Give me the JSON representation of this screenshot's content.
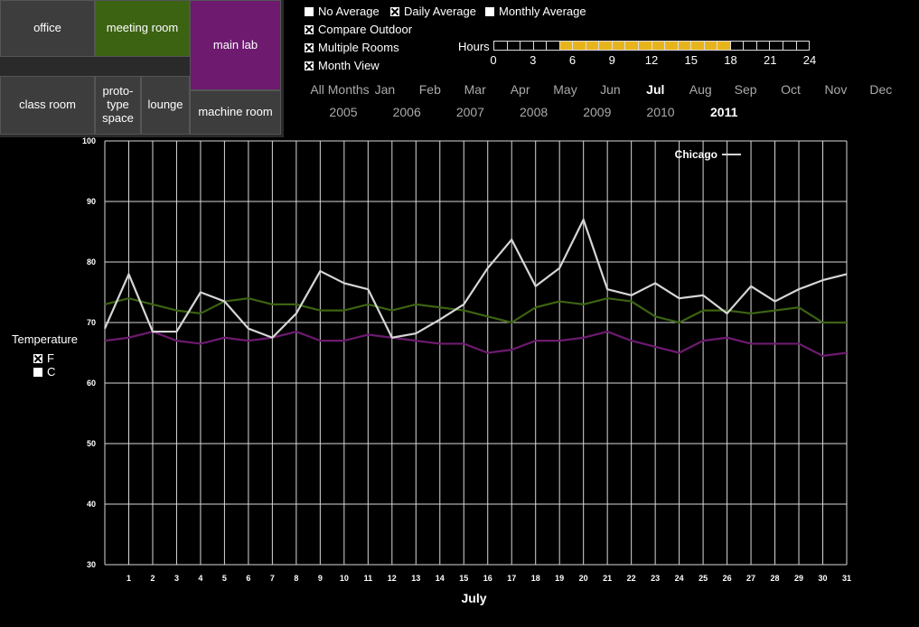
{
  "rooms": [
    {
      "id": "office",
      "label": "office",
      "color": "#3c3d3c"
    },
    {
      "id": "meeting",
      "label": "meeting room",
      "color": "#3c6312"
    },
    {
      "id": "mainlab",
      "label": "main lab",
      "color": "#6d1a6f"
    },
    {
      "id": "classroom",
      "label": "class room",
      "color": "#3c3d3c"
    },
    {
      "id": "prototype",
      "label": "proto-\ntype\nspace",
      "color": "#3c3d3c"
    },
    {
      "id": "lounge",
      "label": "lounge",
      "color": "#3c3d3c"
    },
    {
      "id": "machine",
      "label": "machine room",
      "color": "#3c3d3c"
    }
  ],
  "options": {
    "no_average": {
      "label": "No Average",
      "checked": false
    },
    "daily_average": {
      "label": "Daily Average",
      "checked": true
    },
    "monthly_average": {
      "label": "Monthly Average",
      "checked": false
    },
    "compare_outdoor": {
      "label": "Compare Outdoor",
      "checked": true
    },
    "multiple_rooms": {
      "label": "Multiple Rooms",
      "checked": true
    },
    "month_view": {
      "label": "Month View",
      "checked": true
    }
  },
  "hours": {
    "label": "Hours",
    "ticks": [
      "0",
      "3",
      "6",
      "9",
      "12",
      "15",
      "18",
      "21",
      "24"
    ],
    "selected_start": 5,
    "selected_end": 18
  },
  "months": [
    "All Months",
    "Jan",
    "Feb",
    "Mar",
    "Apr",
    "May",
    "Jun",
    "Jul",
    "Aug",
    "Sep",
    "Oct",
    "Nov",
    "Dec"
  ],
  "active_month": "Jul",
  "years": [
    "2005",
    "2006",
    "2007",
    "2008",
    "2009",
    "2010",
    "2011"
  ],
  "active_year": "2011",
  "temperature": {
    "title": "Temperature",
    "units": [
      {
        "label": "F",
        "checked": true
      },
      {
        "label": "C",
        "checked": false
      }
    ]
  },
  "colors": {
    "outdoor": "#d6d6d6",
    "meeting": "#3c6312",
    "mainlab": "#6d1a6f",
    "highlight": "#e8b41c"
  },
  "chart_data": {
    "type": "line",
    "x": [
      0,
      1,
      2,
      3,
      4,
      5,
      6,
      7,
      8,
      9,
      10,
      11,
      12,
      13,
      14,
      15,
      16,
      17,
      18,
      19,
      20,
      21,
      22,
      23,
      24,
      25,
      26,
      27,
      28,
      29,
      30,
      31
    ],
    "x_tick_labels": [
      "1",
      "2",
      "3",
      "4",
      "5",
      "6",
      "7",
      "8",
      "9",
      "10",
      "11",
      "12",
      "13",
      "14",
      "15",
      "16",
      "17",
      "18",
      "19",
      "20",
      "21",
      "22",
      "23",
      "24",
      "25",
      "26",
      "27",
      "28",
      "29",
      "30",
      "31"
    ],
    "xlabel": "July",
    "ylabel": "",
    "ylim": [
      30,
      100
    ],
    "yticks": [
      30,
      40,
      50,
      60,
      70,
      80,
      90,
      100
    ],
    "grid": true,
    "legend": {
      "label": "Chicago",
      "position": "top-right"
    },
    "series": [
      {
        "name": "Chicago",
        "color": "#d6d6d6",
        "values": [
          69,
          78,
          68.5,
          68.5,
          75,
          73.5,
          69,
          67.5,
          71.5,
          78.5,
          76.5,
          75.5,
          67.5,
          68.2,
          70.5,
          73,
          79,
          83.7,
          76,
          79,
          87,
          75.5,
          74.5,
          76.5,
          74,
          74.5,
          71.5,
          76,
          73.5,
          75.5,
          77,
          78
        ]
      },
      {
        "color": "#3c6312",
        "values": [
          73,
          74,
          73,
          72,
          71.5,
          73.5,
          74,
          73,
          73,
          72,
          72,
          73,
          72,
          73,
          72.5,
          72,
          71,
          70,
          72.5,
          73.5,
          73,
          74,
          73.5,
          71,
          70,
          72,
          72,
          71.5,
          72,
          72.5,
          70,
          70
        ]
      },
      {
        "color": "#6d1a6f",
        "values": [
          67,
          67.5,
          68.5,
          67,
          66.5,
          67.5,
          67,
          67.5,
          68.5,
          67,
          67,
          68,
          67.5,
          67,
          66.5,
          66.5,
          65,
          65.5,
          67,
          67,
          67.5,
          68.5,
          67,
          66,
          65,
          67,
          67.5,
          66.5,
          66.5,
          66.5,
          64.5,
          65
        ]
      }
    ]
  }
}
